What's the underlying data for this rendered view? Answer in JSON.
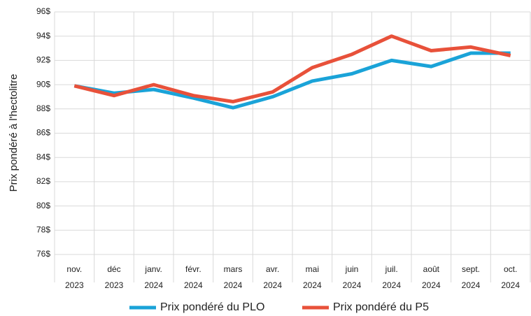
{
  "chart_data": {
    "type": "line",
    "y_label": "Prix pondéré à l'hectolitre",
    "categories": [
      [
        "nov.",
        "2023"
      ],
      [
        "déc",
        "2023"
      ],
      [
        "janv.",
        "2024"
      ],
      [
        "févr.",
        "2024"
      ],
      [
        "mars",
        "2024"
      ],
      [
        "avr.",
        "2024"
      ],
      [
        "mai",
        "2024"
      ],
      [
        "juin",
        "2024"
      ],
      [
        "juil.",
        "2024"
      ],
      [
        "août",
        "2024"
      ],
      [
        "sept.",
        "2024"
      ],
      [
        "oct.",
        "2024"
      ]
    ],
    "series": [
      {
        "name": "Prix pondéré du PLO",
        "color": "#1aa3d8",
        "values": [
          89.9,
          89.3,
          89.6,
          88.9,
          88.1,
          89.0,
          90.3,
          90.9,
          92.0,
          91.5,
          92.6,
          92.6
        ]
      },
      {
        "name": "Prix pondéré du P5",
        "color": "#e8513a",
        "values": [
          89.9,
          89.1,
          90.0,
          89.1,
          88.6,
          89.4,
          91.4,
          92.5,
          94.0,
          92.8,
          93.1,
          92.4
        ]
      }
    ],
    "ylim": [
      76,
      96
    ],
    "yticks": [
      {
        "value": 76,
        "label": "76$"
      },
      {
        "value": 78,
        "label": "78$"
      },
      {
        "value": 80,
        "label": "80$"
      },
      {
        "value": 82,
        "label": "82$"
      },
      {
        "value": 84,
        "label": "84$"
      },
      {
        "value": 86,
        "label": "86$"
      },
      {
        "value": 88,
        "label": "88$"
      },
      {
        "value": 90,
        "label": "90$"
      },
      {
        "value": 92,
        "label": "92$"
      },
      {
        "value": 94,
        "label": "94$"
      },
      {
        "value": 96,
        "label": "96$"
      }
    ],
    "grid": true,
    "legend": "bottom"
  }
}
